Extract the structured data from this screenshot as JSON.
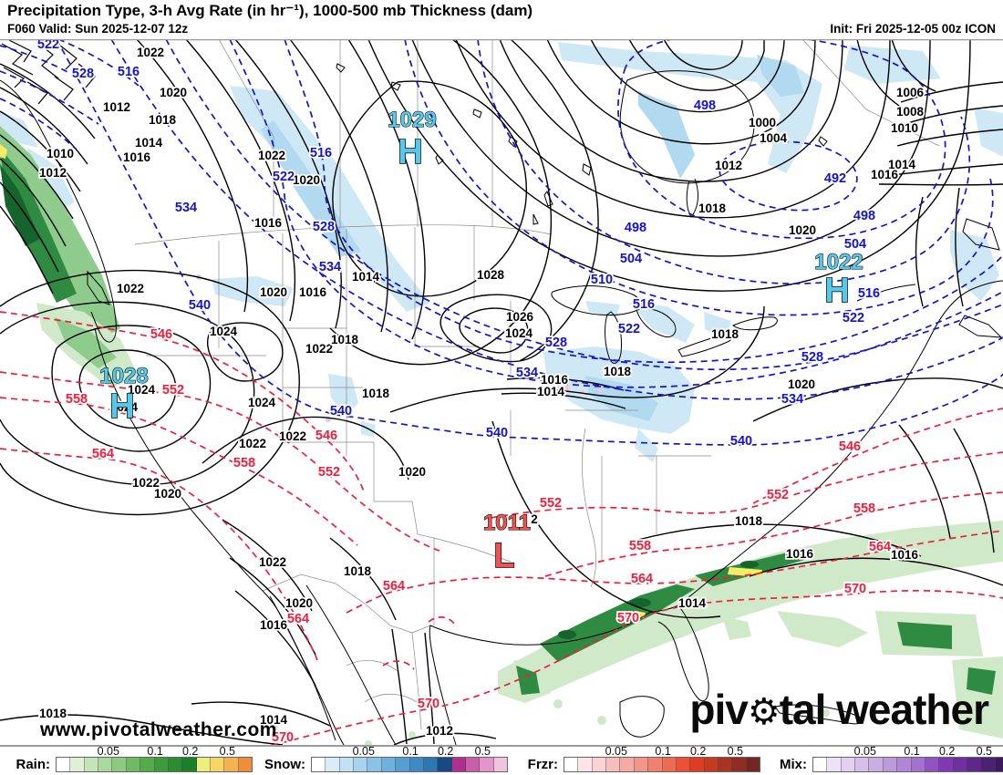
{
  "header": {
    "title": "Precipitation Type, 3-h Avg Rate (in hr⁻¹), 1000-500 mb Thickness (dam)",
    "valid": "F060 Valid: Sun 2025-12-07 12z",
    "init": "Init: Fri 2025-12-05 00z ICON"
  },
  "watermark": "www.pivotalweather.com",
  "logo": {
    "part1": "piv",
    "gear": "⚙",
    "part2": "tal weather"
  },
  "colors": {
    "blue_contour": "#1313cf",
    "red_contour": "#f01e3c",
    "black_contour": "#000000",
    "high_marker": "#56c8ec",
    "low_marker": "#ee5350",
    "snow_shade_light": "#cfe8f6",
    "snow_shade_med": "#b1d9ef",
    "rain_shade_light": "#cfe9c9",
    "rain_shade_med": "#8fcb8d",
    "rain_shade_dark": "#2f8a42",
    "rain_shade_vdark": "#15642e",
    "rain_heavy_yellow": "#f4ee66"
  },
  "pressure_centers": [
    {
      "glyph": "H",
      "value": "1029",
      "vx": 452,
      "vy": 109,
      "gx": 450,
      "gy": 149,
      "fill": "#56c8ec"
    },
    {
      "glyph": "H",
      "value": "1022",
      "vx": 920,
      "vy": 265,
      "gx": 918,
      "gy": 301,
      "fill": "#56c8ec"
    },
    {
      "glyph": "H",
      "value": "1028",
      "vx": 136,
      "vy": 390,
      "gx": 134,
      "gy": 428,
      "fill": "#56c8ec"
    },
    {
      "glyph": "L",
      "value": "1011",
      "vx": 556,
      "vy": 551,
      "gx": 553,
      "gy": 592,
      "fill": "#ee5350"
    }
  ],
  "map_labels": {
    "black": [
      [
        165,
        32,
        "1022"
      ],
      [
        190,
        76,
        "1020"
      ],
      [
        178,
        106,
        "1018"
      ],
      [
        128,
        92,
        "1012"
      ],
      [
        163,
        131,
        "1014"
      ],
      [
        150,
        147,
        "1016"
      ],
      [
        66,
        143,
        "1010"
      ],
      [
        58,
        164,
        "1012"
      ],
      [
        298,
        145,
        "1022"
      ],
      [
        336,
        172,
        "1020"
      ],
      [
        294,
        219,
        "1016"
      ],
      [
        401,
        278,
        "1014"
      ],
      [
        538,
        276,
        "1028"
      ],
      [
        998,
        76,
        "1006"
      ],
      [
        998,
        97,
        "1008"
      ],
      [
        992,
        115,
        "1010"
      ],
      [
        989,
        155,
        "1014"
      ],
      [
        970,
        166,
        "1016"
      ],
      [
        836,
        109,
        "1000"
      ],
      [
        848,
        126,
        "1004"
      ],
      [
        799,
        156,
        "1012"
      ],
      [
        781,
        203,
        "1018"
      ],
      [
        880,
        227,
        "1020"
      ],
      [
        570,
        322,
        "1026"
      ],
      [
        569,
        340,
        "1024"
      ],
      [
        795,
        341,
        "1018"
      ],
      [
        677,
        382,
        "1018"
      ],
      [
        608,
        391,
        "1016"
      ],
      [
        604,
        404,
        "1014"
      ],
      [
        879,
        396,
        "1020"
      ],
      [
        412,
        406,
        "1018"
      ],
      [
        143,
        291,
        "1022"
      ],
      [
        300,
        295,
        "1020"
      ],
      [
        343,
        295,
        "1016"
      ],
      [
        245,
        338,
        "1024"
      ],
      [
        350,
        357,
        "1022"
      ],
      [
        378,
        347,
        "1018"
      ],
      [
        155,
        402,
        "1024"
      ],
      [
        136,
        421,
        "1024"
      ],
      [
        287,
        416,
        "1024"
      ],
      [
        277,
        461,
        "1022"
      ],
      [
        321,
        453,
        "1022"
      ],
      [
        160,
        504,
        "1022"
      ],
      [
        184,
        516,
        "1020"
      ],
      [
        452,
        492,
        "1020"
      ],
      [
        586,
        544,
        "2"
      ],
      [
        299,
        591,
        "1022"
      ],
      [
        392,
        601,
        "1018"
      ],
      [
        328,
        636,
        "1020"
      ],
      [
        300,
        660,
        "1016"
      ],
      [
        58,
        757,
        "1018"
      ],
      [
        300,
        764,
        "1014"
      ],
      [
        482,
        776,
        "1012"
      ],
      [
        821,
        546,
        "1018"
      ],
      [
        877,
        582,
        "1016"
      ],
      [
        992,
        583,
        "1016"
      ],
      [
        759,
        636,
        "1014"
      ]
    ],
    "blue": [
      [
        53,
        23,
        "522"
      ],
      [
        91,
        55,
        "528"
      ],
      [
        141,
        53,
        "516"
      ],
      [
        352,
        142,
        "516"
      ],
      [
        311,
        168,
        "522"
      ],
      [
        355,
        223,
        "528"
      ],
      [
        362,
        267,
        "534"
      ],
      [
        204,
        202,
        "534"
      ],
      [
        219,
        309,
        "540"
      ],
      [
        374,
        425,
        "540"
      ],
      [
        697,
        224,
        "498"
      ],
      [
        773,
        90,
        "498"
      ],
      [
        948,
        211,
        "498"
      ],
      [
        916,
        170,
        "492"
      ],
      [
        692,
        258,
        "504"
      ],
      [
        938,
        242,
        "504"
      ],
      [
        660,
        281,
        "510"
      ],
      [
        706,
        308,
        "516"
      ],
      [
        953,
        296,
        "516"
      ],
      [
        690,
        335,
        "522"
      ],
      [
        936,
        323,
        "522"
      ],
      [
        610,
        350,
        "528"
      ],
      [
        891,
        366,
        "528"
      ],
      [
        578,
        383,
        "534"
      ],
      [
        869,
        412,
        "534"
      ],
      [
        545,
        449,
        "540"
      ],
      [
        813,
        458,
        "540"
      ]
    ],
    "red": [
      [
        177,
        341,
        "546"
      ],
      [
        358,
        452,
        "546"
      ],
      [
        932,
        464,
        "546"
      ],
      [
        190,
        402,
        "552"
      ],
      [
        361,
        492,
        "552"
      ],
      [
        604,
        526,
        "552"
      ],
      [
        853,
        517,
        "552"
      ],
      [
        84,
        412,
        "558"
      ],
      [
        268,
        482,
        "558"
      ],
      [
        702,
        573,
        "558"
      ],
      [
        948,
        532,
        "558"
      ],
      [
        113,
        472,
        "564"
      ],
      [
        327,
        653,
        "564"
      ],
      [
        432,
        617,
        "564"
      ],
      [
        704,
        609,
        "564"
      ],
      [
        965,
        574,
        "564"
      ],
      [
        689,
        652,
        "570"
      ],
      [
        938,
        620,
        "570"
      ],
      [
        470,
        746,
        "570"
      ],
      [
        310,
        783,
        "570"
      ]
    ]
  },
  "legend": {
    "ticks": [
      "0.05",
      "0.1",
      "0.2",
      "0.5"
    ],
    "groups": [
      {
        "label": "Rain:",
        "colors": [
          "#ffffff",
          "#dff0d5",
          "#c5e5b8",
          "#a9d89b",
          "#8cca7f",
          "#6fbb63",
          "#54ab4b",
          "#3c9c3c",
          "#2a8d31",
          "#188026",
          "#edee7c",
          "#f7d666",
          "#f4b350",
          "#ef8d3a"
        ]
      },
      {
        "label": "Snow:",
        "colors": [
          "#ffffff",
          "#daecf8",
          "#c2e1f4",
          "#a7d3ee",
          "#8ac3e6",
          "#6db1dc",
          "#539fd1",
          "#3c8cc3",
          "#2b77b2",
          "#174a80",
          "#b02e90",
          "#ca5fa9",
          "#e395c7",
          "#f0c3de"
        ]
      },
      {
        "label": "Frzr:",
        "colors": [
          "#ffffff",
          "#fce4e8",
          "#f9d2d3",
          "#f7bfbc",
          "#f5aba3",
          "#f3968a",
          "#f08171",
          "#ee6a55",
          "#ec5138",
          "#de3d21",
          "#c43a23",
          "#aa3424",
          "#8f2d23",
          "#74251f"
        ]
      },
      {
        "label": "Mix:",
        "colors": [
          "#ffffff",
          "#eee3f6",
          "#e2d2f0",
          "#d6c0ea",
          "#caade3",
          "#bd9adc",
          "#b086d5",
          "#a272ce",
          "#9153c4",
          "#8138b3",
          "#70309f",
          "#5e288a",
          "#4c2173",
          "#3a195c"
        ]
      }
    ]
  }
}
